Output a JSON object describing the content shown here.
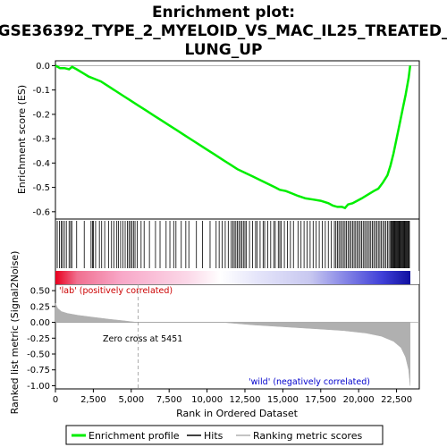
{
  "chart_data": {
    "type": "line",
    "title_lines": [
      "Enrichment plot:",
      "GSE36392_TYPE_2_MYELOID_VS_MAC_IL25_TREATED_",
      "LUNG_UP"
    ],
    "xlabel": "Rank in Ordered Dataset",
    "ylabel_top": "Enrichment score (ES)",
    "ylabel_bottom": "Ranked list metric (Signal2Noise)",
    "xlim": [
      0,
      24000
    ],
    "x_ticks": [
      0,
      2500,
      5000,
      7500,
      10000,
      12500,
      15000,
      17500,
      20000,
      22500
    ],
    "x_tick_labels": [
      "0",
      "2,500",
      "5,000",
      "7,500",
      "10,000",
      "12,500",
      "15,000",
      "17,500",
      "20,000",
      "22,500"
    ],
    "es_ylim": [
      -0.63,
      0.02
    ],
    "es_ticks": [
      0.0,
      -0.1,
      -0.2,
      -0.3,
      -0.4,
      -0.5,
      -0.6
    ],
    "es_tick_labels": [
      "0.0",
      "-0.1",
      "-0.2",
      "-0.3",
      "-0.4",
      "-0.5",
      "-0.6"
    ],
    "metric_ylim": [
      -1.05,
      0.6
    ],
    "metric_ticks": [
      0.5,
      0.25,
      0.0,
      -0.25,
      -0.5,
      -0.75,
      -1.0
    ],
    "metric_tick_labels": [
      "0.50",
      "0.25",
      "0.00",
      "-0.25",
      "-0.50",
      "-0.75",
      "-1.00"
    ],
    "series": [
      {
        "name": "Enrichment profile",
        "color": "#00ee00",
        "x": [
          0,
          300,
          600,
          900,
          1100,
          1400,
          1800,
          2200,
          2600,
          3000,
          3500,
          4000,
          4500,
          5000,
          5500,
          6000,
          6500,
          7000,
          7500,
          8000,
          8500,
          9000,
          9500,
          10000,
          10500,
          11000,
          11500,
          12000,
          12500,
          13000,
          13500,
          14000,
          14500,
          14800,
          15200,
          15600,
          16000,
          16500,
          17000,
          17500,
          18000,
          18300,
          18600,
          18900,
          19100,
          19300,
          19600,
          19900,
          20200,
          20600,
          21000,
          21300,
          21600,
          21900,
          22100,
          22300,
          22500,
          22700,
          22900,
          23100,
          23300,
          23400
        ],
        "y": [
          0.0,
          -0.01,
          -0.01,
          -0.015,
          -0.005,
          -0.015,
          -0.03,
          -0.045,
          -0.055,
          -0.065,
          -0.085,
          -0.105,
          -0.125,
          -0.145,
          -0.165,
          -0.185,
          -0.205,
          -0.225,
          -0.245,
          -0.265,
          -0.285,
          -0.305,
          -0.325,
          -0.345,
          -0.365,
          -0.385,
          -0.405,
          -0.425,
          -0.44,
          -0.455,
          -0.47,
          -0.485,
          -0.5,
          -0.51,
          -0.515,
          -0.525,
          -0.535,
          -0.545,
          -0.55,
          -0.555,
          -0.565,
          -0.575,
          -0.58,
          -0.58,
          -0.585,
          -0.57,
          -0.565,
          -0.555,
          -0.545,
          -0.53,
          -0.515,
          -0.505,
          -0.48,
          -0.45,
          -0.41,
          -0.36,
          -0.3,
          -0.24,
          -0.18,
          -0.12,
          -0.05,
          0.0
        ]
      }
    ],
    "metric_profile": {
      "name": "Ranking metric scores",
      "color": "#b0b0b0",
      "x": [
        0,
        150,
        400,
        800,
        1500,
        2500,
        3500,
        4500,
        5200,
        5451,
        11000,
        13000,
        15000,
        17000,
        19000,
        20500,
        21500,
        22300,
        22800,
        23100,
        23300,
        23400
      ],
      "y": [
        0.3,
        0.22,
        0.17,
        0.14,
        0.11,
        0.08,
        0.05,
        0.025,
        0.005,
        0.0,
        0.0,
        -0.04,
        -0.07,
        -0.1,
        -0.13,
        -0.17,
        -0.22,
        -0.3,
        -0.4,
        -0.55,
        -0.75,
        -1.0
      ]
    },
    "hits": [
      120,
      260,
      380,
      470,
      590,
      720,
      900,
      1000,
      1080,
      1400,
      1900,
      2350,
      2450,
      2500,
      2650,
      2900,
      3050,
      3250,
      3500,
      3700,
      3850,
      4050,
      4150,
      4300,
      4450,
      4600,
      4750,
      4850,
      4950,
      5050,
      5150,
      5250,
      5400,
      5650,
      5850,
      6200,
      6600,
      6900,
      7300,
      7550,
      7800,
      7950,
      8300,
      8600,
      8800,
      9300,
      9700,
      10200,
      10600,
      10800,
      11000,
      11200,
      11400,
      11600,
      11700,
      11800,
      11900,
      12000,
      12100,
      12200,
      12300,
      12400,
      12500,
      12600,
      12800,
      13000,
      13200,
      13300,
      13500,
      13700,
      13800,
      14000,
      14200,
      14400,
      14500,
      14700,
      14800,
      14900,
      15100,
      15300,
      15500,
      15700,
      16000,
      16200,
      16400,
      16600,
      16800,
      17000,
      17200,
      17400,
      17600,
      17800,
      18000,
      18200,
      18400,
      18500,
      18600,
      18700,
      18800,
      18900,
      19000,
      19100,
      19200,
      19300,
      19400,
      19500,
      19600,
      19700,
      19800,
      19900,
      20000,
      20100,
      20200,
      20300,
      20400,
      20500,
      20600,
      20700,
      20800,
      20900,
      21000,
      21100,
      21200,
      21300,
      21400,
      21500,
      21600,
      21700,
      21800,
      21900,
      22000,
      22100,
      22150,
      22200,
      22250,
      22300,
      22350,
      22400,
      22450,
      22500,
      22550,
      22600,
      22650,
      22700,
      22750,
      22800,
      22850,
      22900,
      22950,
      23000,
      23050,
      23100,
      23150,
      23200,
      23250,
      23300,
      23350
    ],
    "zero_cross": 5451,
    "annotations": {
      "pos_label": "'lab' (positively correlated)",
      "neg_label": "'wild' (negatively correlated)",
      "zero_cross_label": "Zero cross at 5451",
      "pos_color": "#cc0000",
      "neg_color": "#0000cc"
    },
    "legend": [
      {
        "label": "Enrichment profile",
        "color": "#00ee00",
        "style": "line"
      },
      {
        "label": "Hits",
        "color": "#000000",
        "style": "line"
      },
      {
        "label": "Ranking metric scores",
        "color": "#b0b0b0",
        "style": "line"
      }
    ]
  }
}
